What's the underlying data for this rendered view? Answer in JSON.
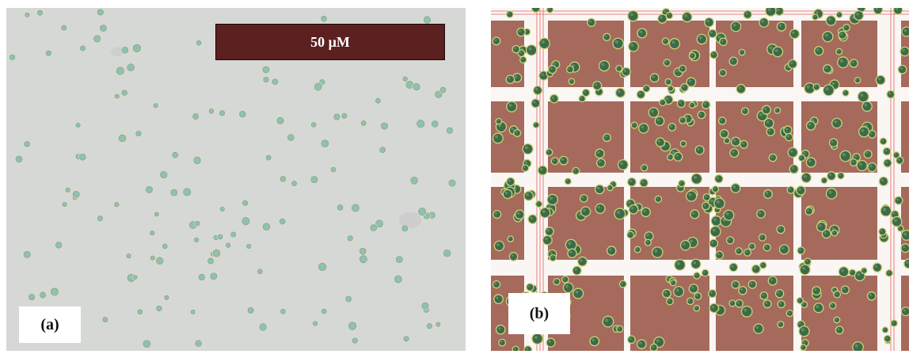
{
  "figure": {
    "panel_a": {
      "label": "(a)",
      "scale_bar_label": "50 µM"
    },
    "panel_b": {
      "label": "(b)"
    }
  },
  "colors": {
    "scale_bar": "#5c2020",
    "background_a": "#d6d8d6",
    "grid_square": "#a56a5c",
    "grid_line": "#ffffff",
    "cell_fill_a": "#8fc1b2",
    "cell_fill_b": "#3e6a48",
    "cell_halo": "#c9d27a"
  }
}
